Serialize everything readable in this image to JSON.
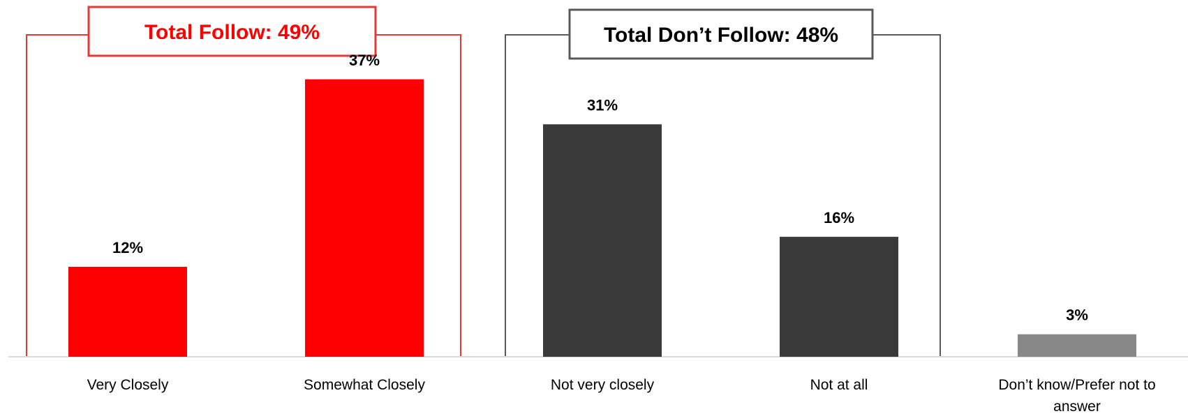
{
  "chart_data": {
    "type": "bar",
    "categories": [
      "Very Closely",
      "Somewhat Closely",
      "Not very closely",
      "Not at all",
      "Don’t know/Prefer not to answer"
    ],
    "category_lines": [
      [
        "Very Closely"
      ],
      [
        "Somewhat Closely"
      ],
      [
        "Not very closely"
      ],
      [
        "Not at all"
      ],
      [
        "Don’t know/Prefer  not to",
        "answer"
      ]
    ],
    "values": [
      12,
      37,
      31,
      16,
      3
    ],
    "value_labels": [
      "12%",
      "37%",
      "31%",
      "16%",
      "3%"
    ],
    "bar_colors": [
      "#ff0000",
      "#ff0000",
      "#3a3a3a",
      "#3a3a3a",
      "#888888"
    ],
    "ylim": [
      0,
      42
    ],
    "grid": false,
    "groups": [
      {
        "label": "Total Follow: 49%",
        "categories": [
          "Very Closely",
          "Somewhat Closely"
        ],
        "color": "#e53935",
        "text_color": "#ff0000"
      },
      {
        "label": "Total Don’t Follow: 48%",
        "categories": [
          "Not very closely",
          "Not at all"
        ],
        "color": "#595959",
        "text_color": "#000000"
      }
    ]
  }
}
